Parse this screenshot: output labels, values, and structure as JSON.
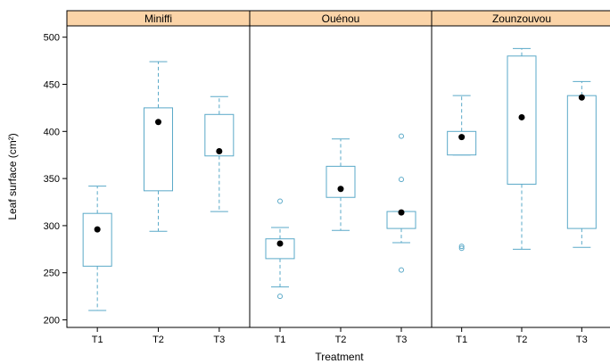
{
  "chart_data": {
    "type": "box",
    "xlabel": "Treatment",
    "ylabel": "Leaf surface (cm²)",
    "ylim": [
      192,
      512
    ],
    "yticks": [
      200,
      250,
      300,
      350,
      400,
      450,
      500
    ],
    "categories": [
      "T1",
      "T2",
      "T3"
    ],
    "grid": false,
    "colors": {
      "box": "#5aa9c8",
      "strip_fill": "#fbd4a8",
      "mean_point": "#000000",
      "frame": "#000000"
    },
    "panels": [
      {
        "name": "Miniffi",
        "boxes": [
          {
            "category": "T1",
            "whisker_low": 210,
            "q1": 257,
            "median": 296,
            "q3": 313,
            "whisker_high": 342,
            "outliers": [],
            "mean": 296
          },
          {
            "category": "T2",
            "whisker_low": 294,
            "q1": 337,
            "median": 410,
            "q3": 425,
            "whisker_high": 474,
            "outliers": [],
            "mean": 410
          },
          {
            "category": "T3",
            "whisker_low": 315,
            "q1": 374,
            "median": 379,
            "q3": 418,
            "whisker_high": 437,
            "outliers": [],
            "mean": 379
          }
        ]
      },
      {
        "name": "Ouénou",
        "boxes": [
          {
            "category": "T1",
            "whisker_low": 235,
            "q1": 265,
            "median": 281,
            "q3": 286,
            "whisker_high": 298,
            "outliers": [
              225,
              326
            ],
            "mean": 281
          },
          {
            "category": "T2",
            "whisker_low": 295,
            "q1": 330,
            "median": 339,
            "q3": 363,
            "whisker_high": 392,
            "outliers": [],
            "mean": 339
          },
          {
            "category": "T3",
            "whisker_low": 282,
            "q1": 297,
            "median": 314,
            "q3": 315,
            "whisker_high": 315,
            "outliers": [
              253,
              349,
              395
            ],
            "mean": 314
          }
        ]
      },
      {
        "name": "Zounzouvou",
        "boxes": [
          {
            "category": "T1",
            "whisker_low": 375,
            "q1": 375,
            "median": 394,
            "q3": 400,
            "whisker_high": 438,
            "outliers": [
              276,
              278
            ],
            "mean": 394
          },
          {
            "category": "T2",
            "whisker_low": 275,
            "q1": 344,
            "median": 415,
            "q3": 480,
            "whisker_high": 488,
            "outliers": [],
            "mean": 415
          },
          {
            "category": "T3",
            "whisker_low": 277,
            "q1": 297,
            "median": 436,
            "q3": 438,
            "whisker_high": 453,
            "outliers": [],
            "mean": 436
          }
        ]
      }
    ]
  }
}
